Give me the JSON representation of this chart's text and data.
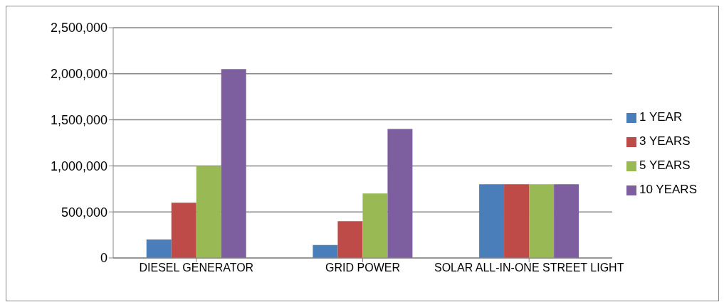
{
  "chart_data": {
    "type": "bar",
    "categories": [
      "DIESEL GENERATOR",
      "GRID POWER",
      "SOLAR ALL-IN-ONE STREET LIGHT"
    ],
    "series": [
      {
        "name": "1 YEAR",
        "color": "#4a7ebb",
        "values": [
          200000,
          140000,
          800000
        ]
      },
      {
        "name": "3 YEARS",
        "color": "#be4b48",
        "values": [
          600000,
          400000,
          800000
        ]
      },
      {
        "name": "5 YEARS",
        "color": "#98b954",
        "values": [
          1000000,
          700000,
          800000
        ]
      },
      {
        "name": "10 YEARS",
        "color": "#7d5fa0",
        "values": [
          2050000,
          1400000,
          800000
        ]
      }
    ],
    "ylim": [
      0,
      2500000
    ],
    "yticks": [
      {
        "value": 0,
        "label": "0"
      },
      {
        "value": 500000,
        "label": "500,000"
      },
      {
        "value": 1000000,
        "label": "1,000,000"
      },
      {
        "value": 1500000,
        "label": "1,500,000"
      },
      {
        "value": 2000000,
        "label": "2,000,000"
      },
      {
        "value": 2500000,
        "label": "2,500,000"
      }
    ],
    "grid": "y",
    "legend": "right"
  }
}
